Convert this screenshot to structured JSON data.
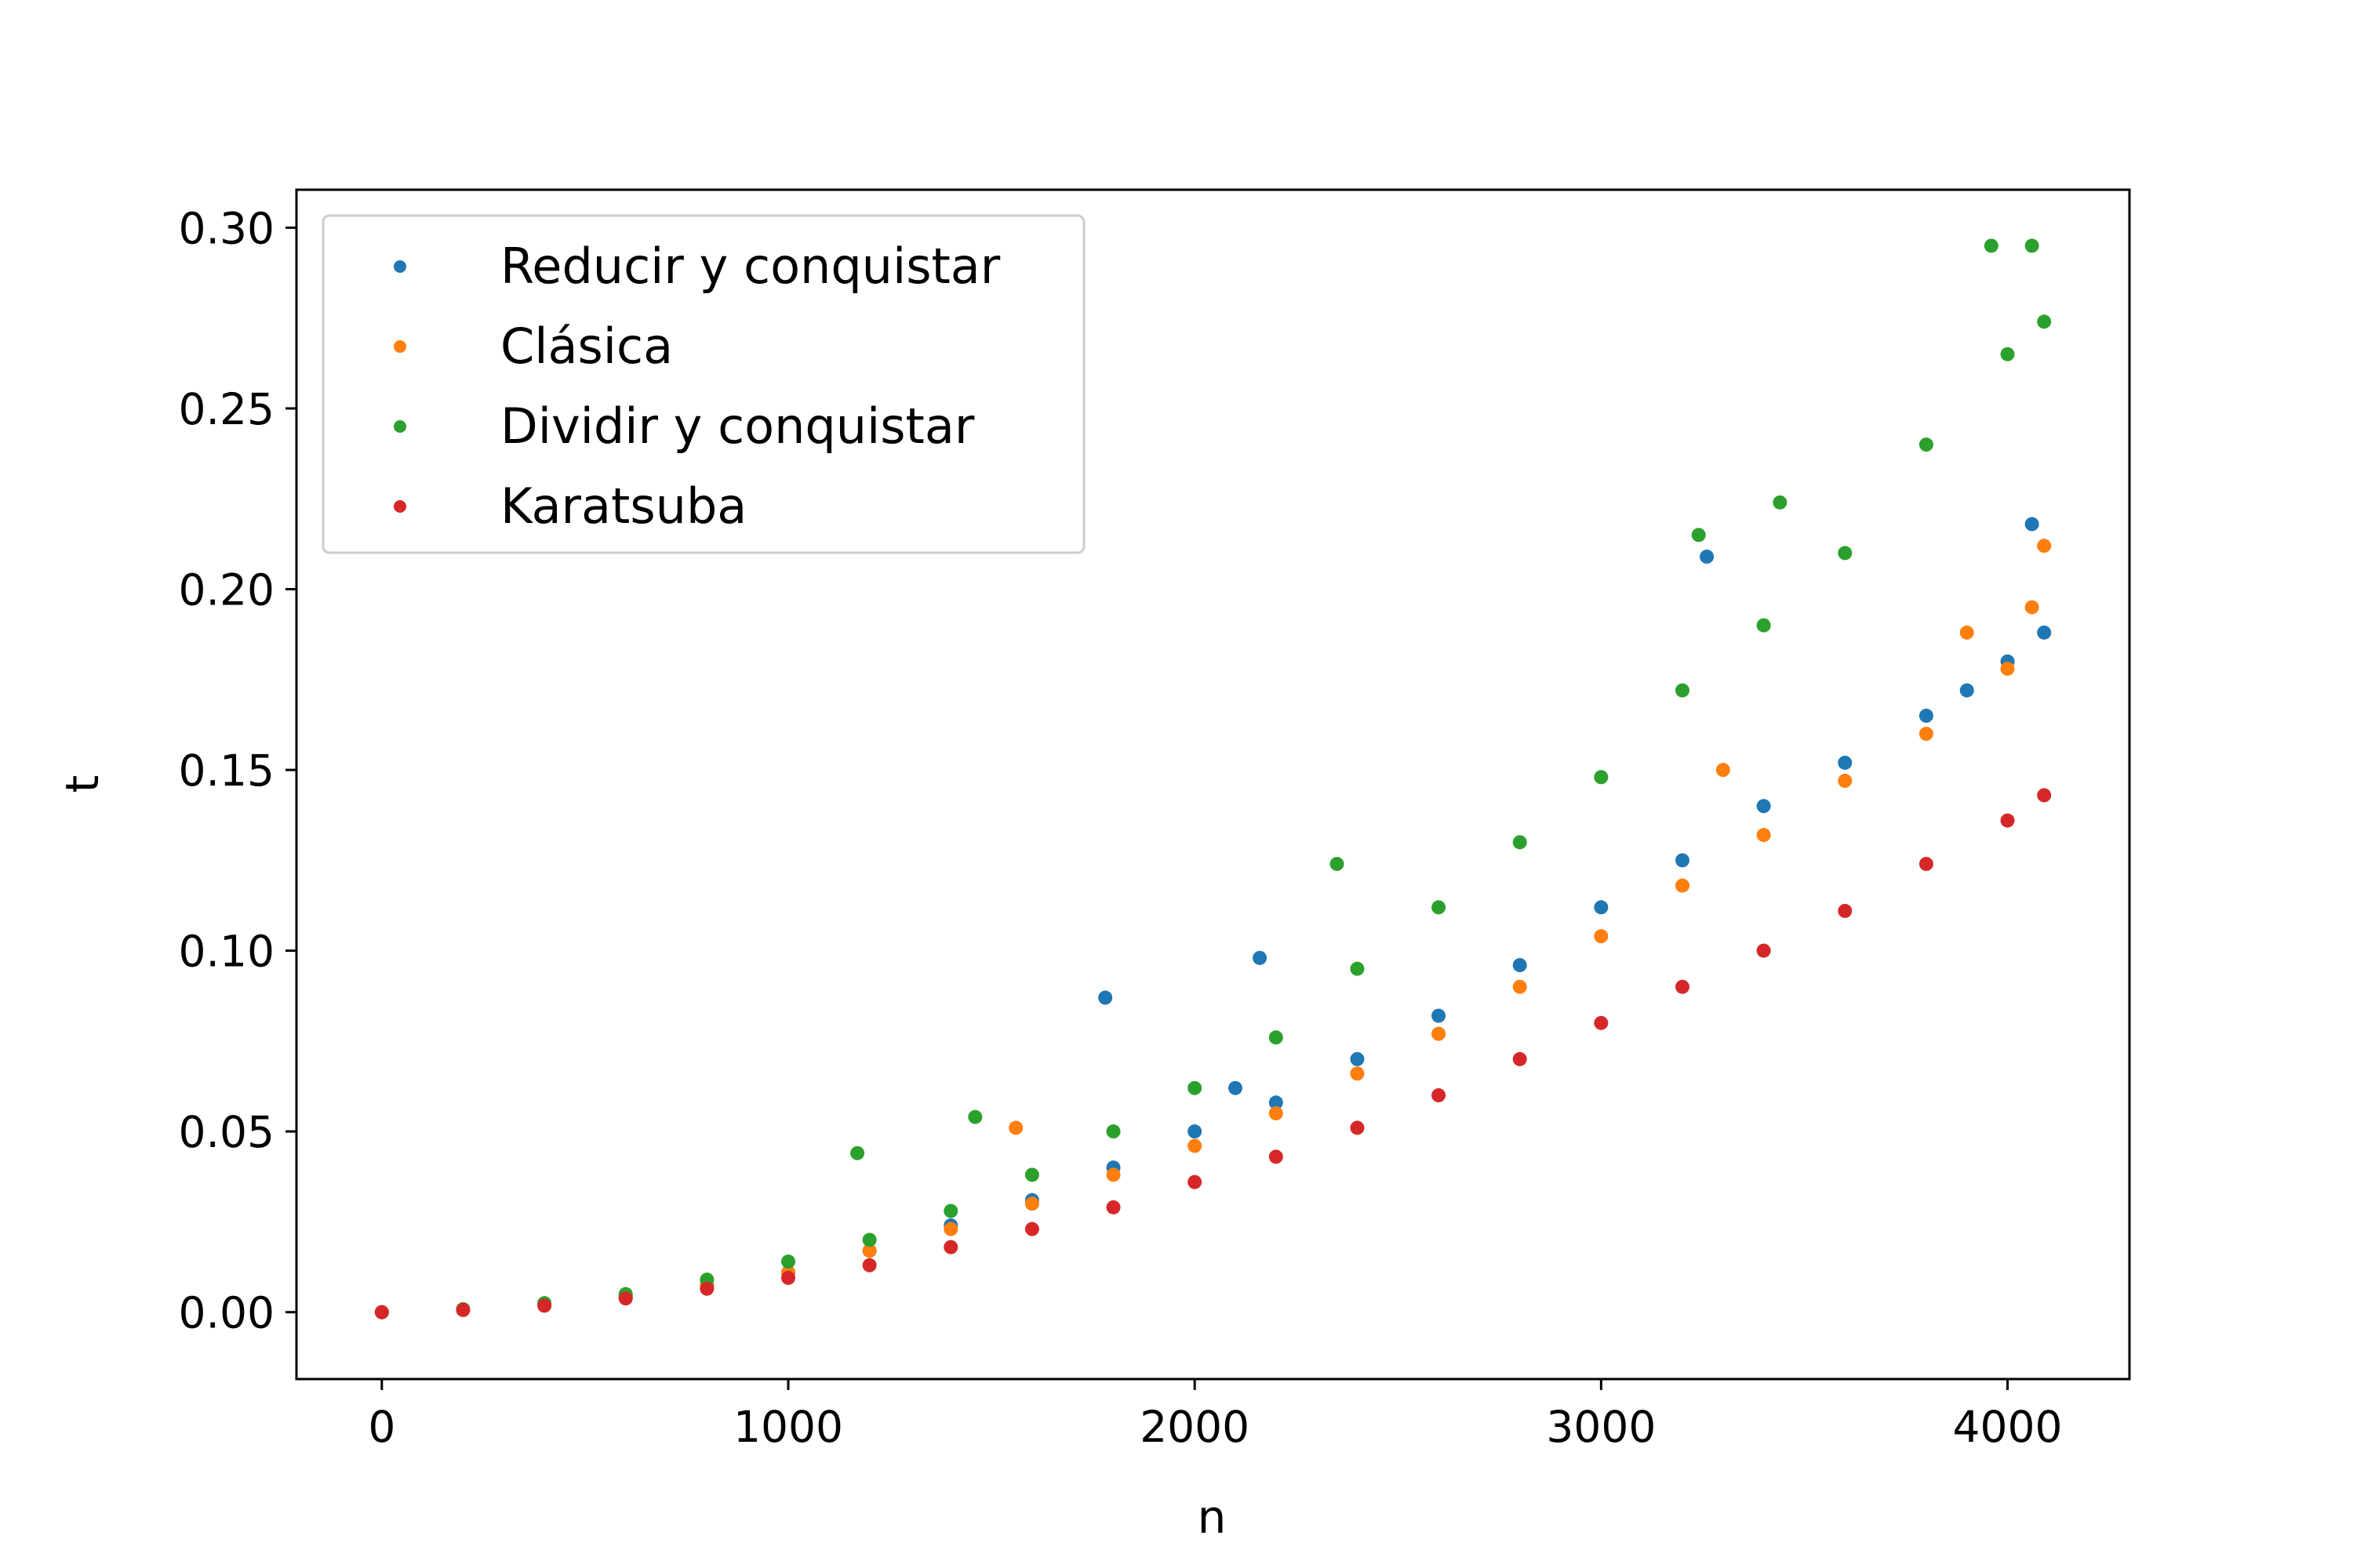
{
  "chart_data": {
    "type": "scatter",
    "title": "",
    "xlabel": "n",
    "ylabel": "t",
    "xlim": [
      -210,
      4300
    ],
    "ylim": [
      -0.0185,
      0.3105
    ],
    "x_ticks": [
      0,
      1000,
      2000,
      3000,
      4000
    ],
    "x_tick_labels": [
      "0",
      "1000",
      "2000",
      "3000",
      "4000"
    ],
    "y_ticks": [
      0.0,
      0.05,
      0.1,
      0.15,
      0.2,
      0.25,
      0.3
    ],
    "y_tick_labels": [
      "0.00",
      "0.05",
      "0.10",
      "0.15",
      "0.20",
      "0.25",
      "0.30"
    ],
    "grid": false,
    "legend_position": "top-left",
    "series": [
      {
        "name": "Reducir y conquistar",
        "color": "#1f77b4",
        "x": [
          0,
          200,
          400,
          600,
          800,
          1000,
          1200,
          1400,
          1600,
          1780,
          1800,
          2000,
          2100,
          2160,
          2200,
          2400,
          2600,
          2800,
          3000,
          3200,
          3260,
          3400,
          3600,
          3800,
          3900,
          4000,
          4060,
          4090
        ],
        "y": [
          0.0,
          0.0008,
          0.002,
          0.0045,
          0.0075,
          0.011,
          0.017,
          0.024,
          0.031,
          0.087,
          0.04,
          0.05,
          0.062,
          0.098,
          0.058,
          0.07,
          0.082,
          0.096,
          0.112,
          0.125,
          0.209,
          0.14,
          0.152,
          0.165,
          0.172,
          0.18,
          0.218,
          0.188
        ]
      },
      {
        "name": "Clásica",
        "color": "#ff7f0e",
        "x": [
          0,
          200,
          400,
          600,
          800,
          1000,
          1200,
          1400,
          1560,
          1600,
          1800,
          2000,
          2200,
          2400,
          2600,
          2800,
          3000,
          3200,
          3300,
          3400,
          3600,
          3800,
          3900,
          4000,
          4060,
          4090
        ],
        "y": [
          0.0,
          0.0008,
          0.002,
          0.004,
          0.0075,
          0.011,
          0.017,
          0.023,
          0.051,
          0.03,
          0.038,
          0.046,
          0.055,
          0.066,
          0.077,
          0.09,
          0.104,
          0.118,
          0.15,
          0.132,
          0.147,
          0.16,
          0.188,
          0.178,
          0.195,
          0.212
        ]
      },
      {
        "name": "Dividir y conquistar",
        "color": "#2ca02c",
        "x": [
          0,
          200,
          400,
          600,
          800,
          1000,
          1170,
          1200,
          1400,
          1460,
          1600,
          1800,
          2000,
          2200,
          2350,
          2400,
          2600,
          2800,
          3000,
          3200,
          3240,
          3400,
          3440,
          3600,
          3800,
          3960,
          4000,
          4060,
          4090
        ],
        "y": [
          0.0,
          0.0008,
          0.0025,
          0.005,
          0.009,
          0.014,
          0.044,
          0.02,
          0.028,
          0.054,
          0.038,
          0.05,
          0.062,
          0.076,
          0.124,
          0.095,
          0.112,
          0.13,
          0.148,
          0.172,
          0.215,
          0.19,
          0.224,
          0.21,
          0.24,
          0.295,
          0.265,
          0.295,
          0.274
        ]
      },
      {
        "name": "Karatsuba",
        "color": "#d62728",
        "x": [
          0,
          200,
          400,
          600,
          800,
          1000,
          1200,
          1400,
          1600,
          1800,
          2000,
          2200,
          2400,
          2600,
          2800,
          3000,
          3200,
          3400,
          3600,
          3800,
          4000,
          4090
        ],
        "y": [
          0.0,
          0.0006,
          0.0018,
          0.0038,
          0.0065,
          0.0095,
          0.013,
          0.018,
          0.023,
          0.029,
          0.036,
          0.043,
          0.051,
          0.06,
          0.07,
          0.08,
          0.09,
          0.1,
          0.111,
          0.124,
          0.136,
          0.143
        ]
      }
    ]
  }
}
